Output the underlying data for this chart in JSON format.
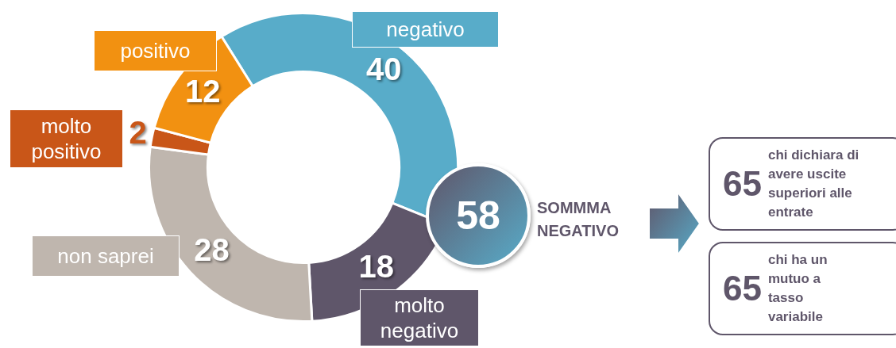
{
  "chart_data": {
    "type": "donut",
    "categories": [
      "negativo",
      "molto negativo",
      "non saprei",
      "molto positivo",
      "positivo"
    ],
    "values": [
      40,
      18,
      28,
      2,
      12
    ],
    "colors": [
      "#58acc9",
      "#5f566a",
      "#bfb6ae",
      "#c95618",
      "#f29111"
    ],
    "data_labels": true,
    "legend": false,
    "annotations": [
      "58",
      "SOMMMA NEGATIVO",
      "65",
      "chi dichiara di avere uscite superiori alle entrate",
      "65",
      "chi ha un mutuo a tasso variabile"
    ]
  }
}
